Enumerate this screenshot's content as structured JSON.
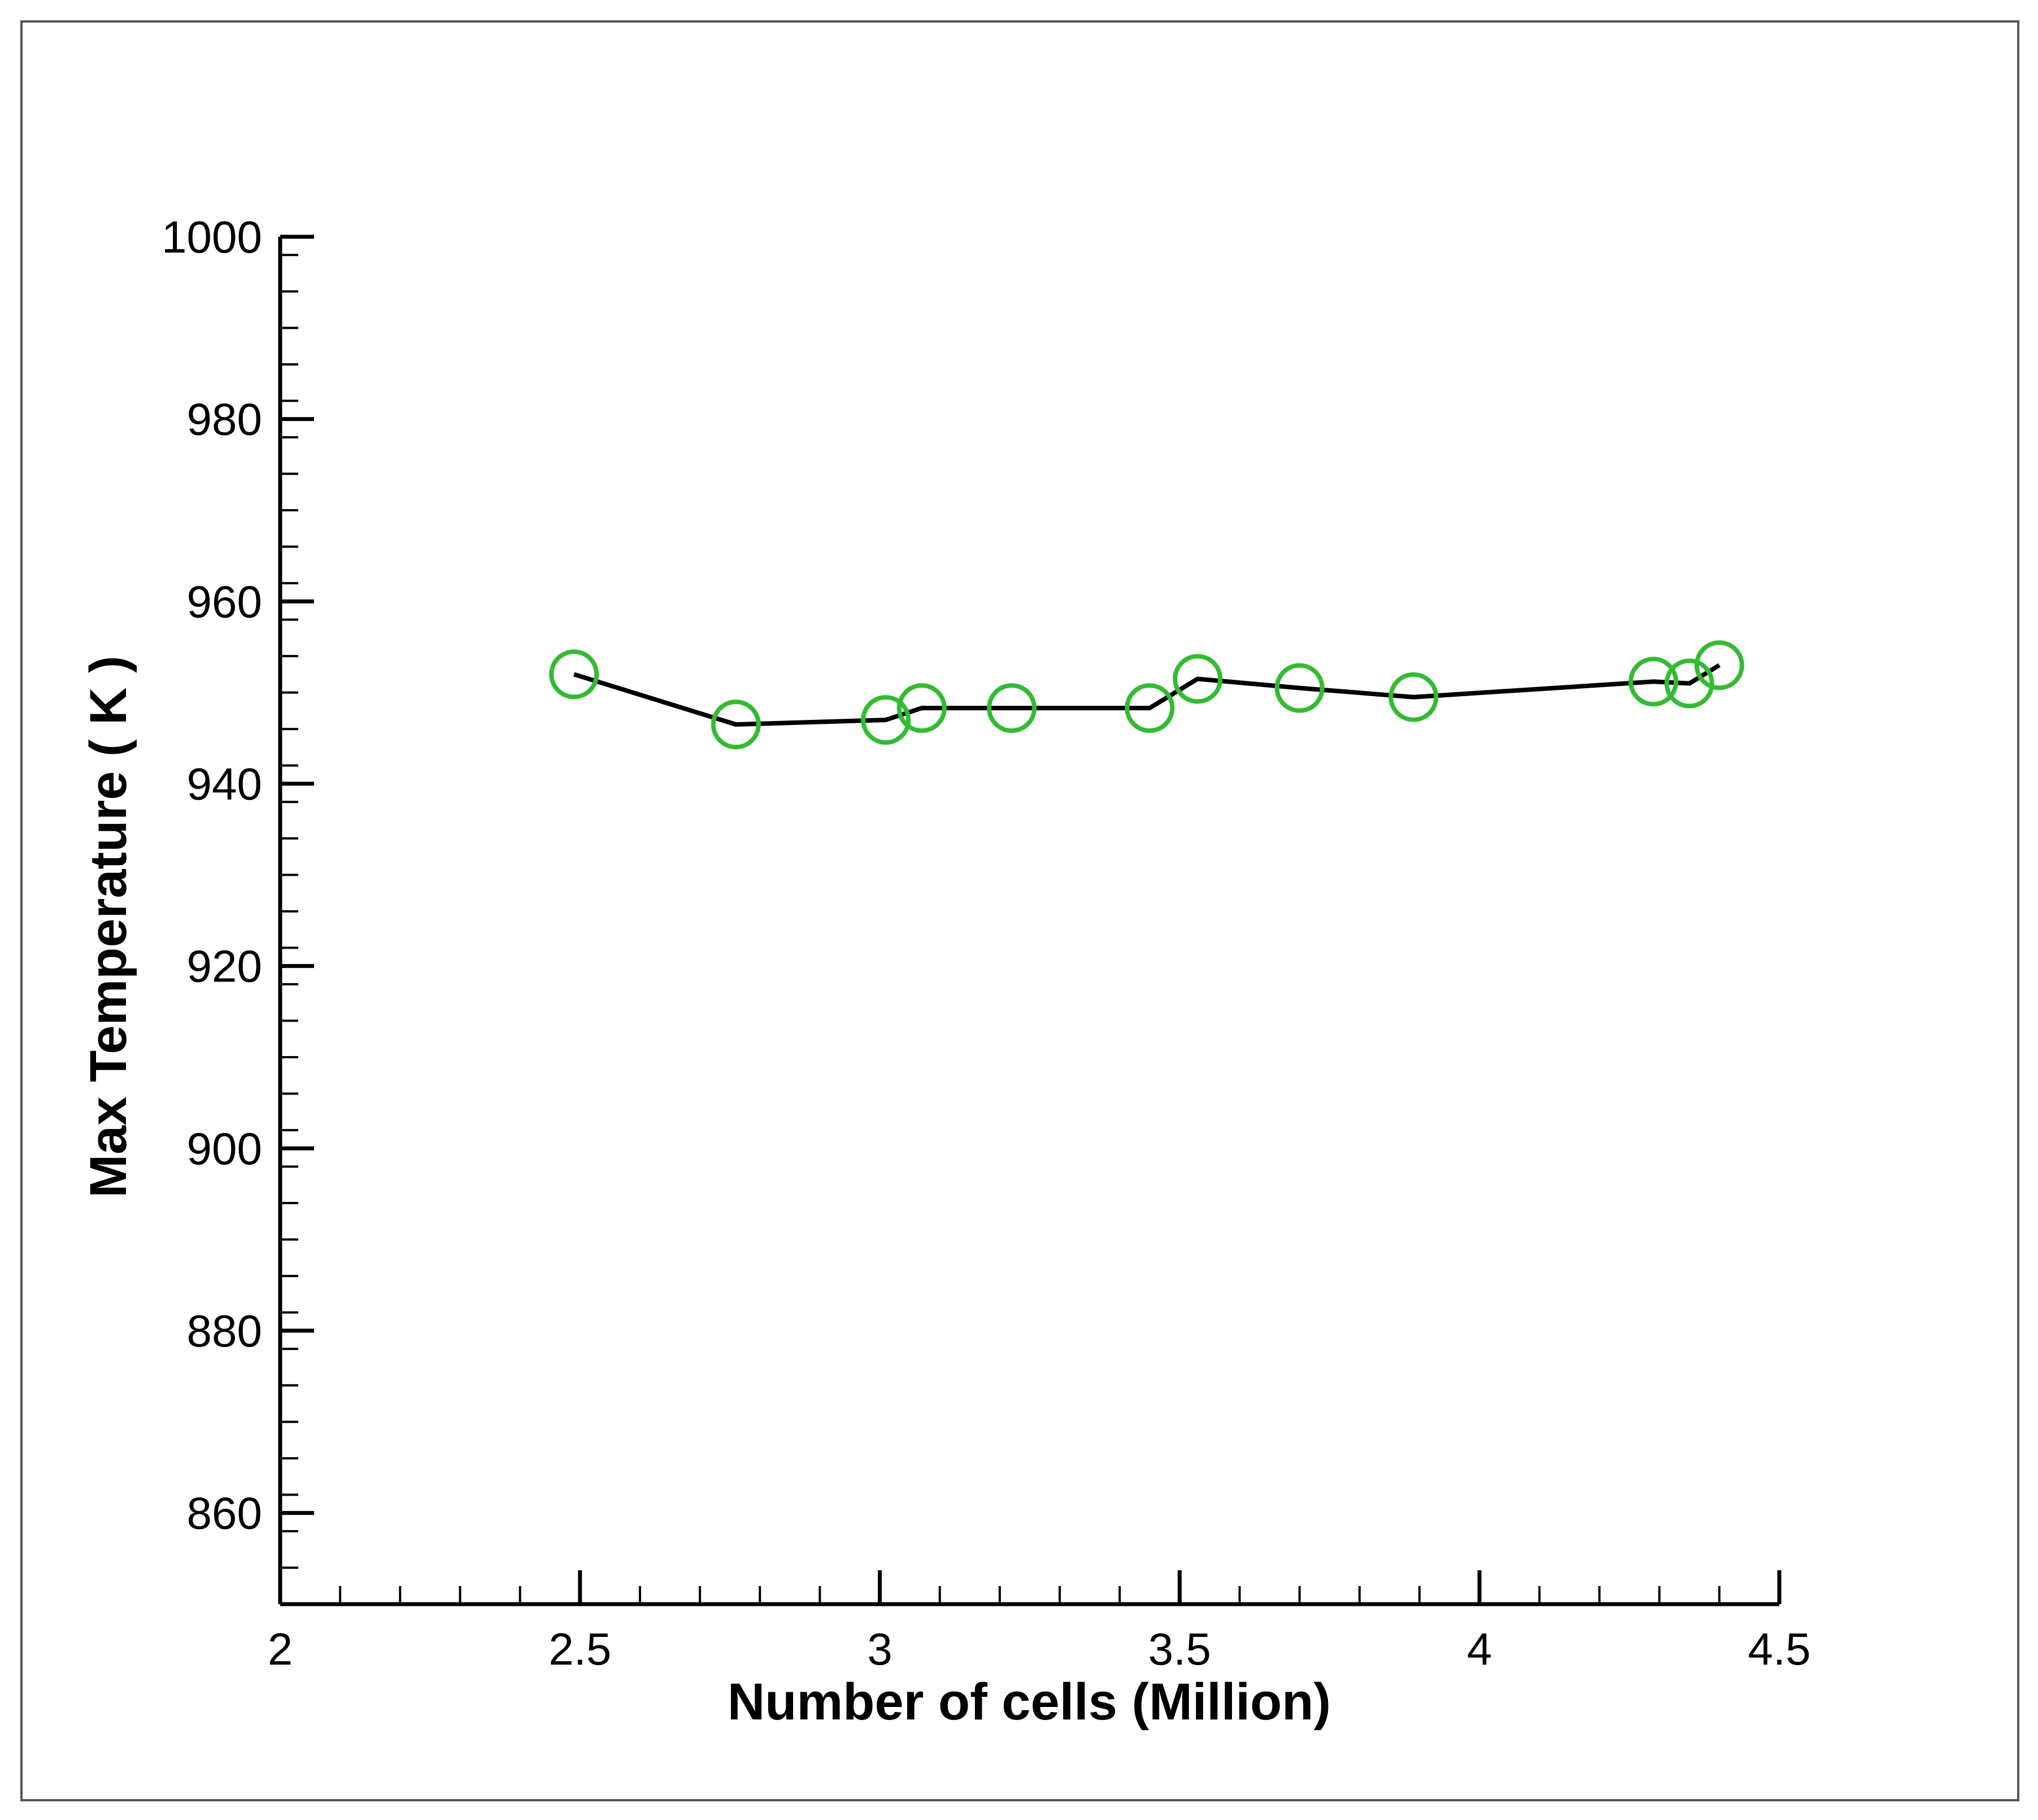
{
  "chart_data": {
    "type": "line",
    "title": "",
    "xlabel": "Number of cells (Million)",
    "ylabel": "Max Temperature ( K )",
    "xlim": [
      2,
      4.5
    ],
    "ylim": [
      850,
      1000
    ],
    "x_ticks": [
      {
        "value": 2,
        "label": "2"
      },
      {
        "value": 2.5,
        "label": "2.5"
      },
      {
        "value": 3,
        "label": "3"
      },
      {
        "value": 3.5,
        "label": "3.5"
      },
      {
        "value": 4,
        "label": "4"
      },
      {
        "value": 4.5,
        "label": "4.5"
      }
    ],
    "x_minor_step": 0.1,
    "y_ticks": [
      {
        "value": 860,
        "label": "860"
      },
      {
        "value": 880,
        "label": "880"
      },
      {
        "value": 900,
        "label": "900"
      },
      {
        "value": 920,
        "label": "920"
      },
      {
        "value": 940,
        "label": "940"
      },
      {
        "value": 960,
        "label": "960"
      },
      {
        "value": 980,
        "label": "980"
      },
      {
        "value": 1000,
        "label": "1000"
      }
    ],
    "y_minor_step": 4,
    "grid": false,
    "legend": "none",
    "series": [
      {
        "name": "Max Temperature",
        "x": [
          2.49,
          2.76,
          3.01,
          3.07,
          3.22,
          3.45,
          3.53,
          3.7,
          3.89,
          4.29,
          4.35,
          4.4
        ],
        "y": [
          952.0,
          946.5,
          947.0,
          948.3,
          948.3,
          948.3,
          951.5,
          950.5,
          949.5,
          951.2,
          951.0,
          953.0
        ],
        "line_color": "#000000",
        "marker": "circle",
        "marker_color": "#33bb33"
      }
    ]
  }
}
